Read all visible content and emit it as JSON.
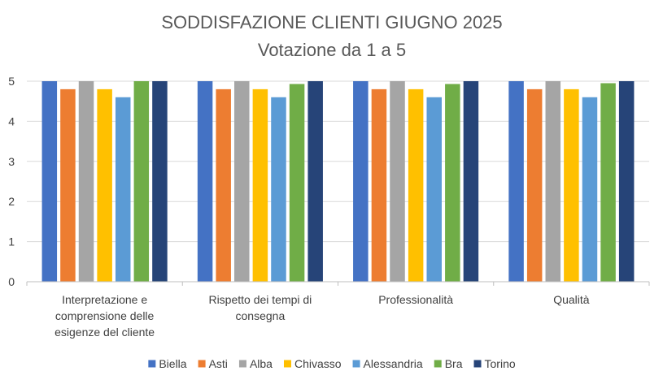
{
  "chart_data": {
    "type": "bar",
    "title": "SODDISFAZIONE CLIENTI GIUGNO 2025",
    "subtitle": "Votazione da 1 a 5",
    "xlabel": "",
    "ylabel": "",
    "ylim": [
      0,
      5
    ],
    "yticks": [
      "0",
      "1",
      "2",
      "3",
      "4",
      "5"
    ],
    "grid": true,
    "legend_position": "bottom",
    "categories": [
      "Interpretazione e comprensione delle esigenze del cliente",
      "Rispetto dei tempi di consegna",
      "Professionalità",
      "Qualità"
    ],
    "category_lines": [
      [
        "Interpretazione e",
        "comprensione delle",
        "esigenze del cliente"
      ],
      [
        "Rispetto dei tempi di",
        "consegna"
      ],
      [
        "Professionalità"
      ],
      [
        "Qualità"
      ]
    ],
    "series": [
      {
        "name": "Biella",
        "color": "#4472C4",
        "values": [
          5,
          5,
          5,
          5
        ]
      },
      {
        "name": "Asti",
        "color": "#ED7D31",
        "values": [
          4.8,
          4.8,
          4.8,
          4.8
        ]
      },
      {
        "name": "Alba",
        "color": "#A5A5A5",
        "values": [
          5,
          5,
          5,
          5
        ]
      },
      {
        "name": "Chivasso",
        "color": "#FFC000",
        "values": [
          4.8,
          4.8,
          4.8,
          4.8
        ]
      },
      {
        "name": "Alessandria",
        "color": "#5B9BD5",
        "values": [
          4.6,
          4.6,
          4.6,
          4.6
        ]
      },
      {
        "name": "Bra",
        "color": "#70AD47",
        "values": [
          5,
          4.93,
          4.93,
          4.95
        ]
      },
      {
        "name": "Torino",
        "color": "#264478",
        "values": [
          5,
          5,
          5,
          5
        ]
      }
    ]
  }
}
